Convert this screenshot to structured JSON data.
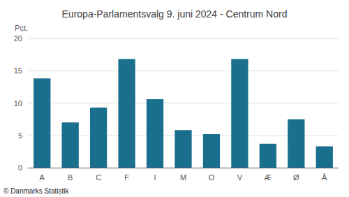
{
  "chart_data": {
    "type": "bar",
    "title": "Europa-Parlamentsvalg 9. juni 2024 - Centrum Nord",
    "ylabel": "Pct.",
    "annotations": [
      "© Danmarks Statistik"
    ],
    "categories": [
      "A",
      "B",
      "C",
      "F",
      "I",
      "M",
      "O",
      "V",
      "Æ",
      "Ø",
      "Å"
    ],
    "values": [
      13.8,
      7.0,
      9.3,
      16.8,
      10.6,
      5.8,
      5.2,
      16.8,
      3.7,
      7.5,
      3.3
    ],
    "color": "#1a6e8e",
    "ylim": [
      0,
      20
    ],
    "yticks": [
      0,
      5,
      10,
      15,
      20
    ],
    "grid": true
  }
}
